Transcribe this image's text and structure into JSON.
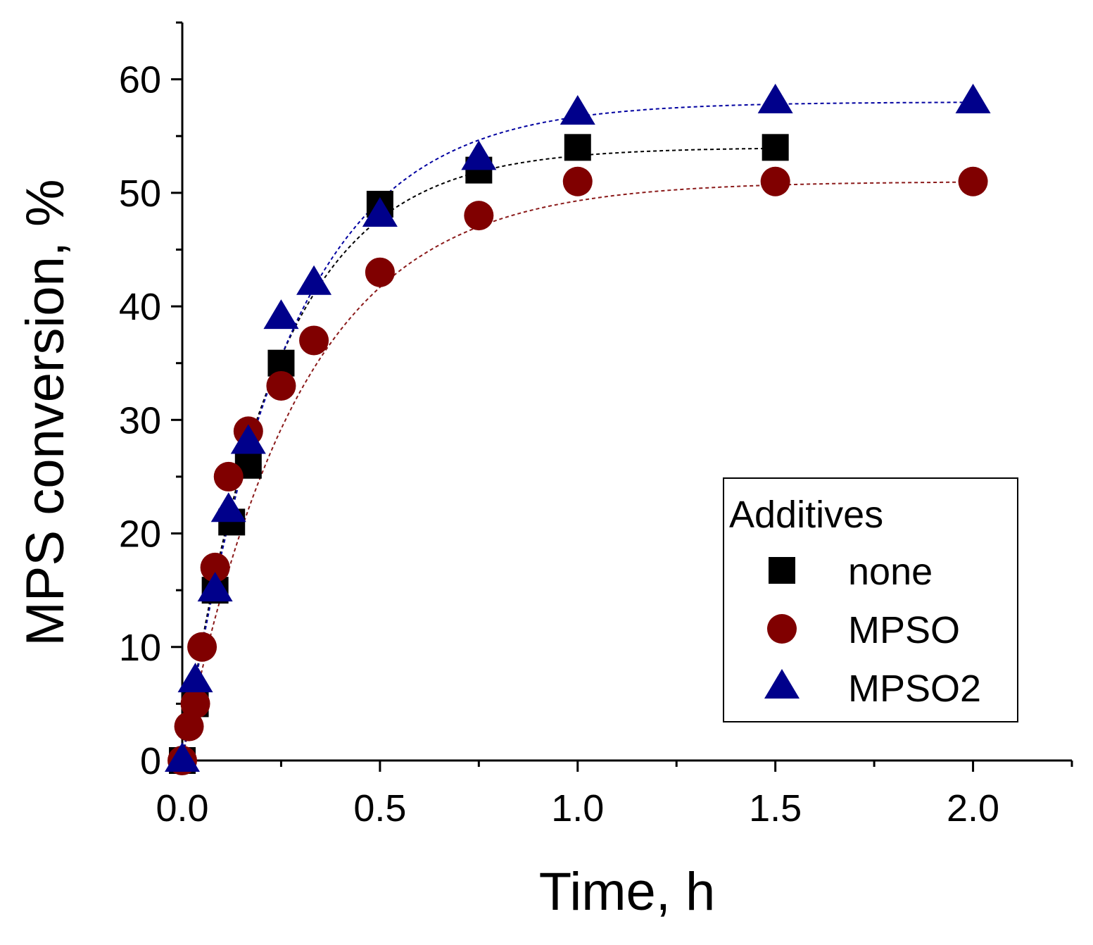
{
  "chart_data": {
    "type": "scatter",
    "xlabel": "Time, h",
    "ylabel": "MPS conversion, %",
    "xlim": [
      0,
      2.25
    ],
    "ylim": [
      0,
      65
    ],
    "x_ticks": [
      "0.0",
      "0.5",
      "1.0",
      "1.5",
      "2.0"
    ],
    "y_ticks": [
      "0",
      "10",
      "20",
      "30",
      "40",
      "50",
      "60"
    ],
    "grid": false,
    "legend": {
      "title": "Additives",
      "placement": "right"
    },
    "series": [
      {
        "name": "none",
        "marker": "square",
        "color": "#000000",
        "fit_color": "#000000",
        "x": [
          0,
          0.033,
          0.083,
          0.125,
          0.167,
          0.25,
          0.5,
          0.75,
          1.0,
          1.5
        ],
        "y": [
          0,
          5,
          15,
          21,
          26,
          35,
          49,
          52,
          54,
          54
        ],
        "fit": {
          "plateau": 54.0,
          "k": 4.3
        }
      },
      {
        "name": "MPSO",
        "marker": "circle",
        "color": "#800000",
        "fit_color": "#8b1a1a",
        "x": [
          0,
          0.017,
          0.033,
          0.05,
          0.083,
          0.117,
          0.167,
          0.25,
          0.333,
          0.5,
          0.75,
          1.0,
          1.5,
          2.0
        ],
        "y": [
          0,
          3,
          5,
          10,
          17,
          25,
          29,
          33,
          37,
          43,
          48,
          51,
          51,
          51
        ],
        "fit": {
          "plateau": 51.0,
          "k": 3.4
        }
      },
      {
        "name": "MPSO2",
        "marker": "triangle",
        "color": "#00008b",
        "fit_color": "#0000a0",
        "x": [
          0,
          0.033,
          0.083,
          0.117,
          0.167,
          0.25,
          0.333,
          0.5,
          0.75,
          1.0,
          1.5,
          2.0
        ],
        "y": [
          0,
          7,
          15,
          22,
          28,
          39,
          42,
          48,
          53,
          57,
          58,
          58
        ],
        "fit": {
          "plateau": 58.0,
          "k": 3.8
        }
      }
    ]
  }
}
